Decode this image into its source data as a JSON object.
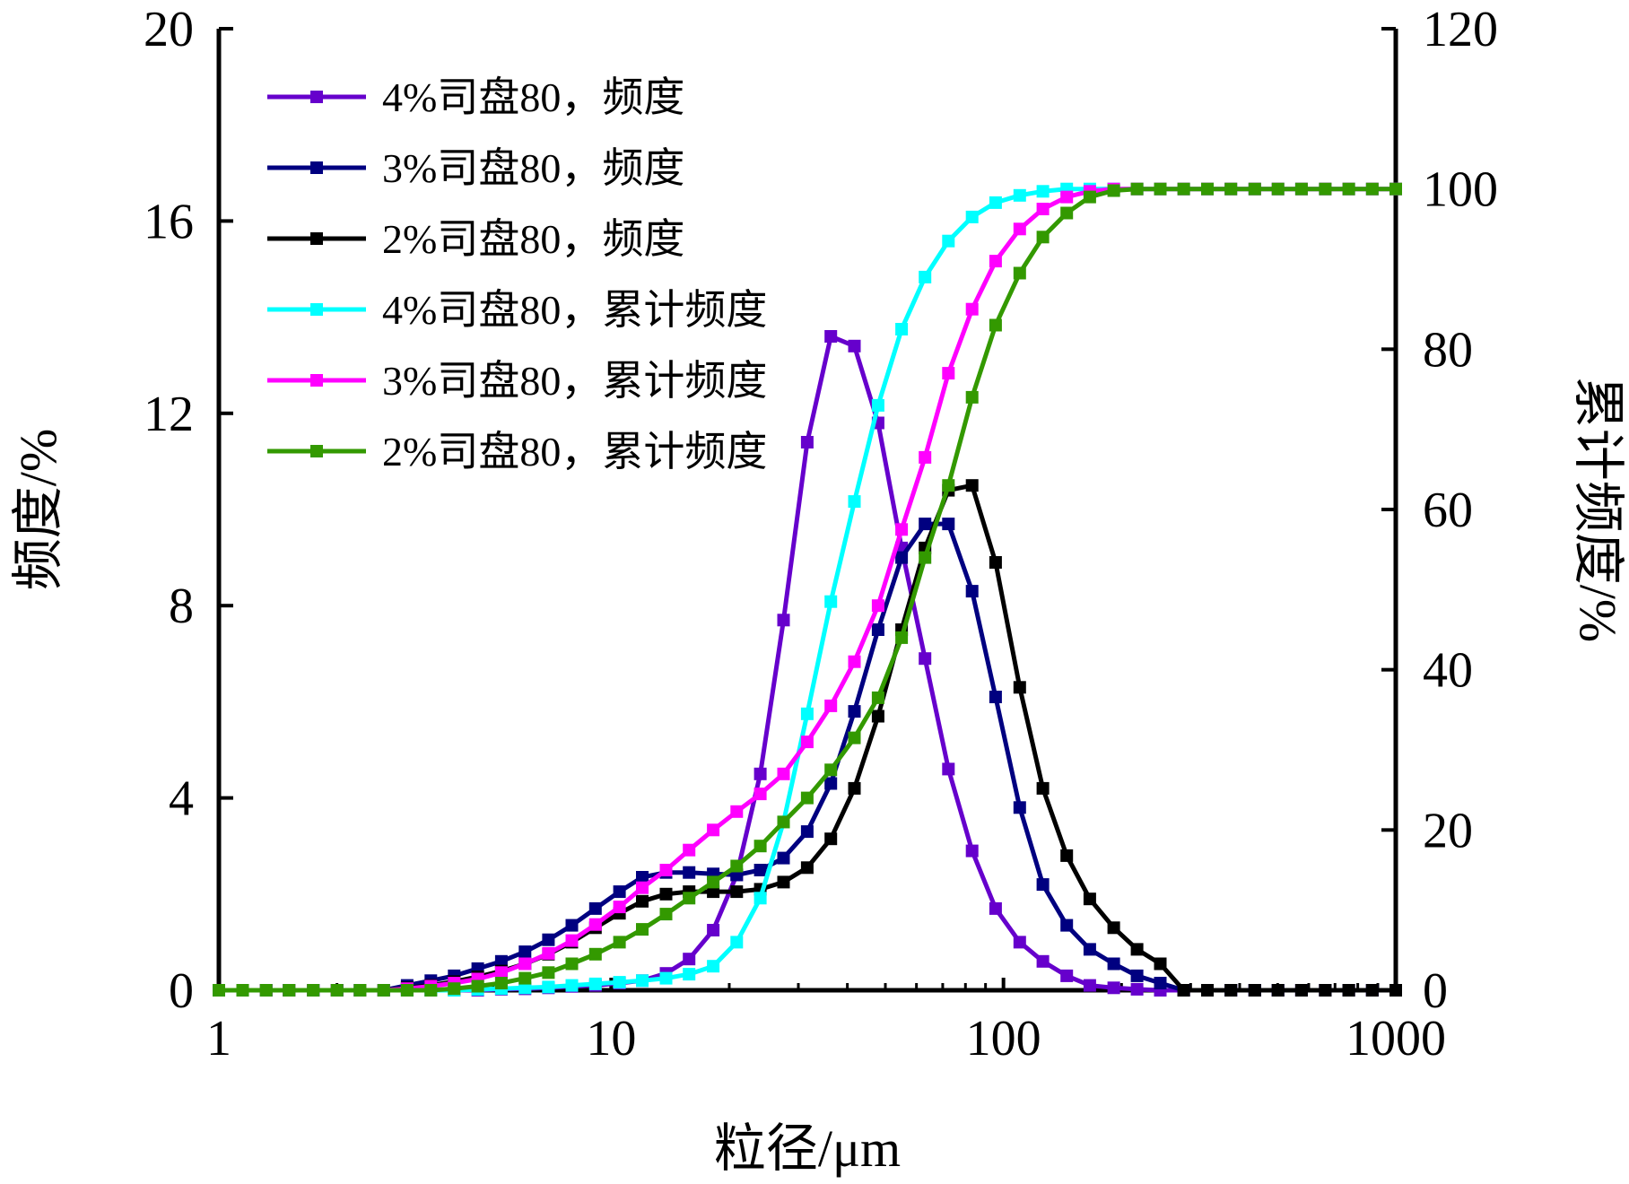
{
  "chart_data": {
    "type": "line",
    "title": "",
    "xlabel": "粒径/μm",
    "ylabel": "频度/%",
    "y2label": "累计频度/%",
    "xscale": "log",
    "xlim": [
      1,
      1000
    ],
    "ylim": [
      0,
      20
    ],
    "y2lim": [
      0,
      120
    ],
    "x_ticks": [
      "1",
      "10",
      "100",
      "1000"
    ],
    "y_ticks": [
      "0",
      "4",
      "8",
      "12",
      "16",
      "20"
    ],
    "y2_ticks": [
      "0",
      "20",
      "40",
      "60",
      "80",
      "100",
      "120"
    ],
    "grid": false,
    "legend_position": "top-left",
    "x": [
      1.0,
      1.15,
      1.32,
      1.51,
      1.74,
      2.0,
      2.29,
      2.63,
      3.02,
      3.47,
      3.98,
      4.57,
      5.25,
      6.03,
      6.92,
      7.94,
      9.12,
      10.5,
      12.0,
      13.8,
      15.8,
      18.2,
      20.9,
      24.0,
      27.5,
      31.6,
      36.3,
      41.7,
      47.9,
      55.0,
      63.1,
      72.4,
      83.2,
      95.5,
      110,
      126,
      145,
      166,
      191,
      219,
      251,
      288,
      331,
      380,
      437,
      501,
      575,
      661,
      759,
      871,
      1000
    ],
    "series": [
      {
        "name": "4%司盘80，频度",
        "axis": "left",
        "color": "#6600cc",
        "values": [
          0,
          0,
          0,
          0,
          0,
          0,
          0,
          0,
          0,
          0,
          0,
          0,
          0.02,
          0.03,
          0.05,
          0.08,
          0.1,
          0.15,
          0.2,
          0.35,
          0.65,
          1.25,
          2.4,
          4.5,
          7.7,
          11.4,
          13.6,
          13.4,
          11.8,
          9.2,
          6.9,
          4.6,
          2.9,
          1.7,
          1.0,
          0.6,
          0.3,
          0.1,
          0.05,
          0.02,
          0,
          0,
          0,
          0,
          0,
          0,
          0,
          0,
          0,
          0,
          0
        ]
      },
      {
        "name": "3%司盘80，频度",
        "axis": "left",
        "color": "#000080",
        "values": [
          0,
          0,
          0,
          0,
          0,
          0,
          0,
          0,
          0.1,
          0.2,
          0.3,
          0.45,
          0.6,
          0.8,
          1.05,
          1.35,
          1.7,
          2.05,
          2.35,
          2.45,
          2.45,
          2.42,
          2.4,
          2.5,
          2.75,
          3.3,
          4.3,
          5.8,
          7.5,
          9.0,
          9.7,
          9.7,
          8.3,
          6.1,
          3.8,
          2.2,
          1.35,
          0.85,
          0.55,
          0.3,
          0.15,
          0,
          0,
          0,
          0,
          0,
          0,
          0,
          0,
          0,
          0
        ]
      },
      {
        "name": "2%司盘80，频度",
        "axis": "left",
        "color": "#000000",
        "values": [
          0,
          0,
          0,
          0,
          0,
          0,
          0,
          0,
          0.05,
          0.1,
          0.18,
          0.28,
          0.4,
          0.55,
          0.75,
          1.0,
          1.3,
          1.6,
          1.85,
          2.0,
          2.05,
          2.05,
          2.05,
          2.1,
          2.25,
          2.55,
          3.15,
          4.2,
          5.7,
          7.5,
          9.2,
          10.4,
          10.5,
          8.9,
          6.3,
          4.2,
          2.8,
          1.9,
          1.3,
          0.85,
          0.55,
          0,
          0,
          0,
          0,
          0,
          0,
          0,
          0,
          0,
          0
        ]
      },
      {
        "name": "4%司盘80，累计频度",
        "axis": "right",
        "color": "#00ffff",
        "values": [
          0,
          0,
          0,
          0,
          0,
          0,
          0,
          0,
          0,
          0,
          0,
          0.1,
          0.2,
          0.3,
          0.4,
          0.6,
          0.8,
          1.0,
          1.2,
          1.5,
          2.0,
          3.0,
          6.0,
          11.5,
          21.0,
          34.5,
          48.5,
          61.0,
          73.0,
          82.5,
          89.0,
          93.5,
          96.5,
          98.3,
          99.2,
          99.7,
          100,
          100,
          100,
          100,
          100,
          100,
          100,
          100,
          100,
          100,
          100,
          100,
          100,
          100,
          100
        ]
      },
      {
        "name": "3%司盘80，累计频度",
        "axis": "right",
        "color": "#ff00ff",
        "values": [
          0,
          0,
          0,
          0,
          0,
          0,
          0,
          0,
          0.2,
          0.5,
          0.9,
          1.4,
          2.2,
          3.3,
          4.6,
          6.2,
          8.2,
          10.4,
          12.8,
          15.0,
          17.5,
          20.0,
          22.3,
          24.5,
          27.0,
          31.0,
          35.5,
          41.0,
          48.0,
          57.5,
          66.5,
          77.0,
          85.0,
          91.0,
          95.0,
          97.5,
          99.0,
          99.7,
          100,
          100,
          100,
          100,
          100,
          100,
          100,
          100,
          100,
          100,
          100,
          100,
          100
        ]
      },
      {
        "name": "2%司盘80，累计频度",
        "axis": "right",
        "color": "#339900",
        "values": [
          0,
          0,
          0,
          0,
          0,
          0,
          0,
          0,
          0,
          0,
          0.2,
          0.5,
          0.9,
          1.5,
          2.2,
          3.3,
          4.5,
          6.0,
          7.6,
          9.5,
          11.5,
          13.5,
          15.5,
          18.0,
          21.0,
          24.0,
          27.5,
          31.5,
          36.5,
          44.0,
          54.0,
          63.0,
          74.0,
          83.0,
          89.5,
          94.0,
          97.0,
          99.0,
          99.8,
          100,
          100,
          100,
          100,
          100,
          100,
          100,
          100,
          100,
          100,
          100,
          100
        ]
      }
    ]
  }
}
